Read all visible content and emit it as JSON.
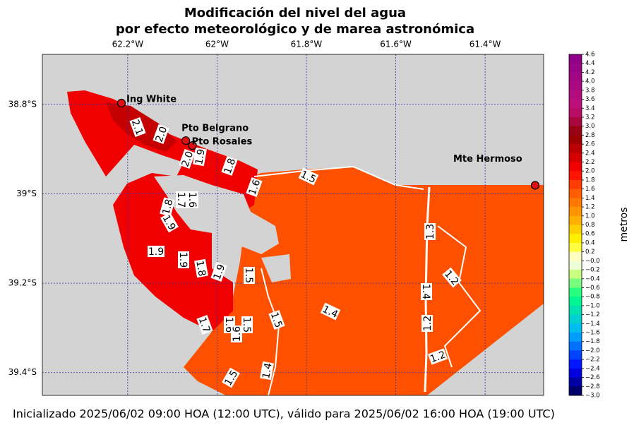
{
  "map": {
    "title": [
      "Modificación del nivel del agua",
      "por efecto meteorológico y de marea astronómica"
    ],
    "xlim": [
      -62.391,
      -61.269
    ],
    "ylim": [
      -39.451,
      -38.688
    ],
    "xticks": [
      {
        "value": -62.2,
        "label": "62.2°W"
      },
      {
        "value": -62.0,
        "label": "62°W"
      },
      {
        "value": -61.8,
        "label": "61.8°W"
      },
      {
        "value": -61.6,
        "label": "61.6°W"
      },
      {
        "value": -61.4,
        "label": "61.4°W"
      }
    ],
    "yticks": [
      {
        "value": -38.8,
        "label": "38.8°S"
      },
      {
        "value": -39.0,
        "label": "39°S"
      },
      {
        "value": -39.2,
        "label": "39.2°S"
      },
      {
        "value": -39.4,
        "label": "39.4°S"
      }
    ],
    "grid": true,
    "stations": [
      {
        "name": "Ing White",
        "lon": -62.214,
        "lat": -38.797
      },
      {
        "name": "Pto Belgrano",
        "lon": -62.07,
        "lat": -38.881
      },
      {
        "name": "Pto Rosales",
        "lon": -62.055,
        "lat": -38.892
      },
      {
        "name": "Mte Hermoso",
        "lon": -61.288,
        "lat": -38.981
      }
    ],
    "contour_labels": [
      "2.1",
      "2.0",
      "2.0",
      "1.9",
      "1.8",
      "1.5",
      "1.6",
      "1.7",
      "1.6",
      "1.8",
      "1.9",
      "1.9",
      "1.9",
      "1.8",
      "1.9",
      "1.5",
      "1.3",
      "1.2",
      "1.4",
      "1.4",
      "1.5",
      "1.2",
      "1.7",
      "1.6",
      "1.5",
      "1.6",
      "1.4",
      "1.5",
      "1.2"
    ],
    "colorbar": {
      "label": "metros",
      "lim": [
        -3.0,
        4.6
      ],
      "ticks": [
        4.6,
        4.4,
        4.2,
        {
          "value": 4.0,
          "label": "4.0"
        },
        3.8,
        3.6,
        3.4,
        3.2,
        {
          "value": 3.0,
          "label": "3.0"
        },
        2.8,
        2.6,
        2.4,
        2.2,
        {
          "value": 2.0,
          "label": "2.0"
        },
        1.8,
        1.6,
        1.4,
        1.2,
        {
          "value": 1.0,
          "label": "1.0"
        },
        0.8,
        0.6,
        0.4,
        0.2,
        {
          "value": 0,
          "label": "−0.0"
        },
        {
          "value": -0.2,
          "label": "−0.2"
        },
        {
          "value": -0.4,
          "label": "−0.4"
        },
        {
          "value": -0.6,
          "label": "−0.6"
        },
        {
          "value": -0.8,
          "label": "−0.8"
        },
        {
          "value": -1.0,
          "label": "−1.0"
        },
        {
          "value": -1.2,
          "label": "−1.2"
        },
        {
          "value": -1.4,
          "label": "−1.4"
        },
        {
          "value": -1.6,
          "label": "−1.6"
        },
        {
          "value": -1.8,
          "label": "−1.8"
        },
        {
          "value": -2.0,
          "label": "−2.0"
        },
        {
          "value": -2.2,
          "label": "−2.2"
        },
        {
          "value": -2.4,
          "label": "−2.4"
        },
        {
          "value": -2.6,
          "label": "−2.6"
        },
        {
          "value": -2.8,
          "label": "−2.8"
        },
        {
          "value": -3.0,
          "label": "−3.0"
        }
      ]
    },
    "footer": "Inicializado 2025/06/02 09:00 HOA (12:00 UTC), válido para 2025/06/02 16:00 HOA (19:00 UTC)"
  }
}
